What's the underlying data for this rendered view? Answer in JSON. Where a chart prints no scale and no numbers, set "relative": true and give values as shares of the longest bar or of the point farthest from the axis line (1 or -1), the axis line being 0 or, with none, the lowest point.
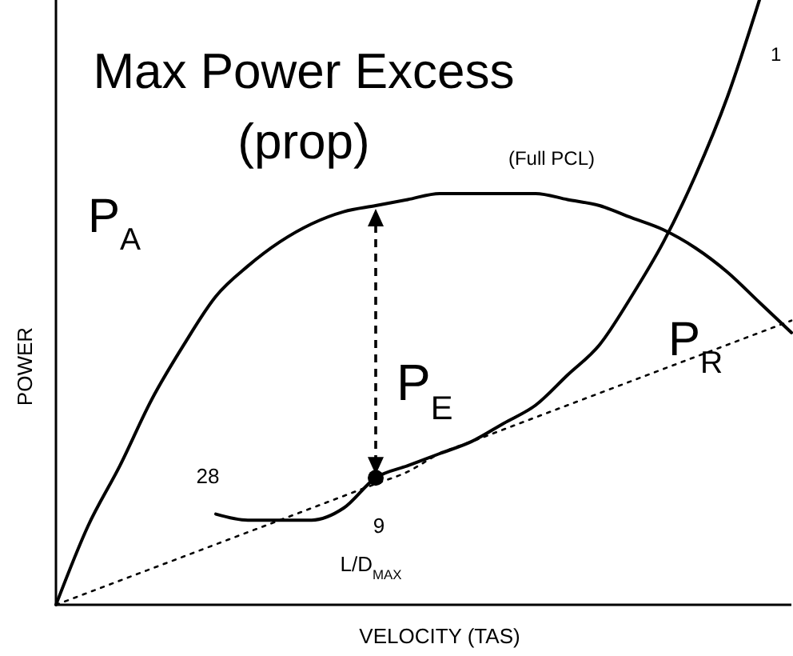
{
  "chart_data": {
    "type": "line",
    "title": "Max Power Excess\n(prop)",
    "xlabel": "VELOCITY  (TAS)",
    "ylabel": "POWER",
    "relative": true,
    "categories": [
      null,
      null,
      null,
      null,
      null,
      null,
      null,
      null,
      null,
      null,
      null,
      null,
      null,
      null,
      null,
      null,
      null,
      null,
      null,
      null,
      null,
      null,
      null,
      null
    ],
    "series": [
      {
        "name": "P$_{A}$",
        "color": "#000000",
        "values": [
          0,
          0.13,
          0.23,
          0.34,
          0.43,
          0.51,
          0.56,
          0.6,
          0.63,
          0.65,
          0.66,
          0.67,
          0.68,
          0.68,
          0.68,
          0.68,
          0.67,
          0.66,
          0.64,
          0.62,
          0.59,
          0.55,
          0.5,
          0.45
        ]
      },
      {
        "name": "P$_{R}$",
        "color": "#000000",
        "values": [
          null,
          null,
          null,
          null,
          null,
          0.15,
          0.14,
          0.14,
          0.14,
          0.16,
          0.21,
          0.23,
          0.25,
          0.27,
          0.3,
          0.33,
          0.38,
          0.43,
          0.51,
          0.6,
          0.71,
          0.84,
          1,
          null
        ]
      },
      {
        "color": "#000000",
        "line_style": "dotted",
        "values": [
          0,
          0.02,
          0.04,
          0.06,
          0.08,
          0.1,
          0.12,
          0.14,
          0.16,
          0.18,
          0.2,
          0.22,
          0.25,
          0.27,
          0.29,
          0.31,
          0.33,
          0.35,
          0.37,
          0.39,
          0.41,
          0.43,
          0.45,
          0.47
        ]
      }
    ],
    "annotations": [
      "P$_{E}$",
      "(Full PCL)",
      "1",
      "28",
      "9",
      "L/D$_{MAX}$"
    ]
  }
}
